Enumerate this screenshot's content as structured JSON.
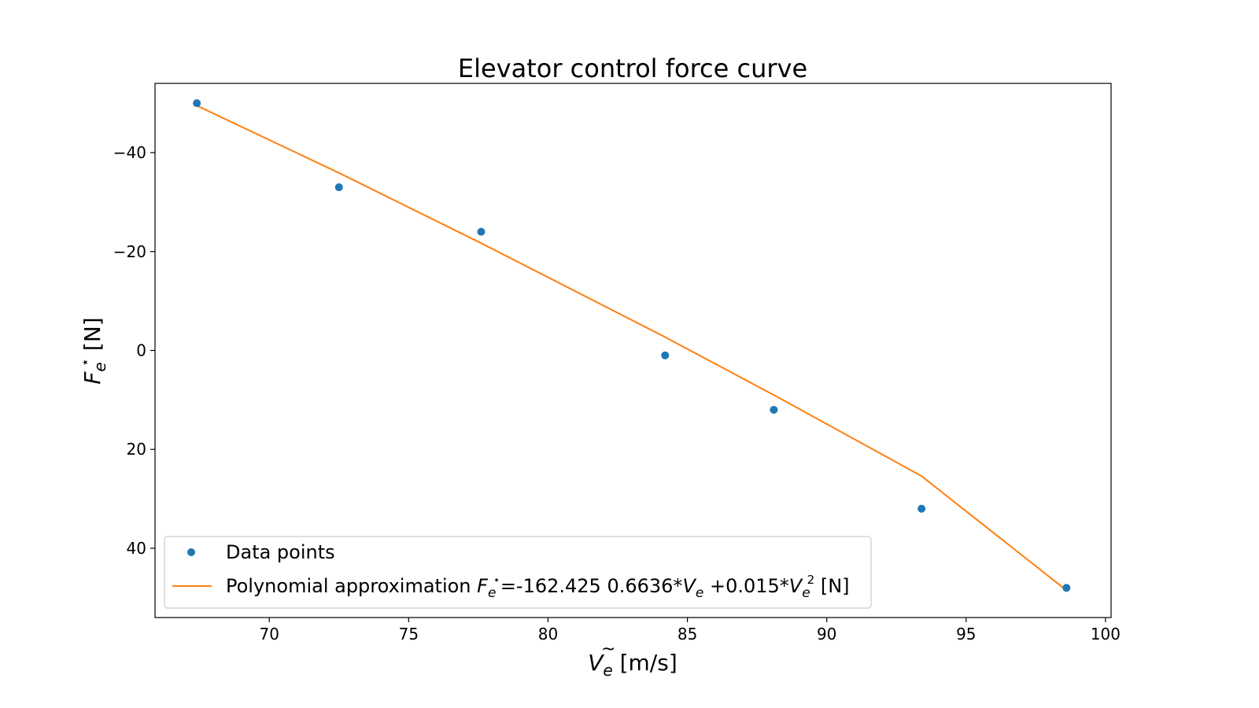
{
  "chart_data": {
    "type": "scatter",
    "title": "Elevator control force curve",
    "xlabel": {
      "base": "V",
      "sub": "e",
      "unit": " [m/s]"
    },
    "ylabel": {
      "base": "F",
      "sub": "e",
      "sup": "⋆",
      "unit": " [N]"
    },
    "xlim": [
      65.9,
      100.2
    ],
    "ylim": [
      54,
      -54
    ],
    "y_inverted": true,
    "grid": false,
    "x_ticks": [
      70,
      75,
      80,
      85,
      90,
      95,
      100
    ],
    "x_tick_labels": [
      "70",
      "75",
      "80",
      "85",
      "90",
      "95",
      "100"
    ],
    "y_ticks": [
      -40,
      -20,
      0,
      20,
      40
    ],
    "y_tick_labels": [
      "−40",
      "−20",
      "0",
      "20",
      "40"
    ],
    "legend_position": "lower-left",
    "series": [
      {
        "name": "Data points",
        "kind": "scatter",
        "color": "#1f77b4",
        "x": [
          67.4,
          72.5,
          77.6,
          84.2,
          88.1,
          93.4,
          98.6
        ],
        "y": [
          -50,
          -33,
          -24,
          1,
          12,
          32,
          48
        ]
      },
      {
        "name": "Polynomial approximation",
        "kind": "line",
        "color": "#ff7f0e",
        "x": [
          67.4,
          72.5,
          77.6,
          84.2,
          88.1,
          93.4,
          98.6
        ],
        "y": [
          -49.5,
          -35.9,
          -21.7,
          -2.7,
          9.0,
          25.4,
          48.5
        ]
      }
    ],
    "legend": {
      "scatter_label": "Data points",
      "line_prefix": "Polynomial approximation ",
      "line_eq_lhs_base": "F",
      "line_eq_lhs_sub": "e",
      "line_eq_lhs_sup": "⋆",
      "line_eq_part1": "=-162.425 0.6636*",
      "line_eq_var_base": "V",
      "line_eq_var_sub": "e",
      "line_eq_part2": " +0.015*",
      "line_eq_var2_base": "V",
      "line_eq_var2_sub": "e",
      "line_eq_var2_sup": "2",
      "line_eq_unit": " [N]"
    }
  }
}
